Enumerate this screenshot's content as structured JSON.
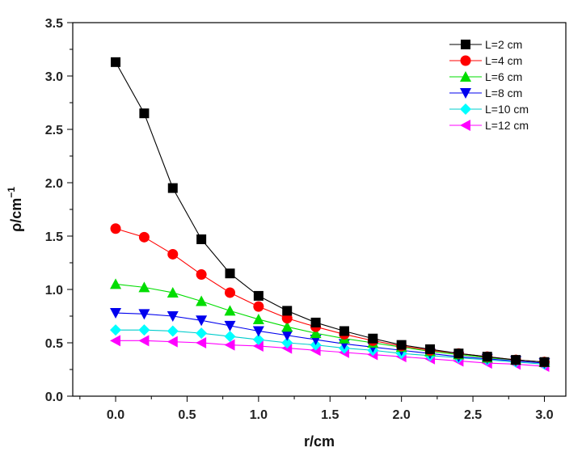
{
  "chart_data": {
    "type": "line",
    "title": "",
    "xlabel": "r/cm",
    "ylabel": "ρ/cm",
    "ylabel_exponent": "−1",
    "xlim": [
      -0.3,
      3.15
    ],
    "ylim": [
      0.0,
      3.5
    ],
    "x_ticks": [
      0.0,
      0.5,
      1.0,
      1.5,
      2.0,
      2.5,
      3.0
    ],
    "x_tick_labels": [
      "0.0",
      "0.5",
      "1.0",
      "1.5",
      "2.0",
      "2.5",
      "3.0"
    ],
    "y_ticks": [
      0.0,
      0.5,
      1.0,
      1.5,
      2.0,
      2.5,
      3.0,
      3.5
    ],
    "y_tick_labels": [
      "0.0",
      "0.5",
      "1.0",
      "1.5",
      "2.0",
      "2.5",
      "3.0",
      "3.5"
    ],
    "grid": false,
    "legend_position": "top-right",
    "x": [
      0.0,
      0.2,
      0.4,
      0.6,
      0.8,
      1.0,
      1.2,
      1.4,
      1.6,
      1.8,
      2.0,
      2.2,
      2.4,
      2.6,
      2.8,
      3.0
    ],
    "series": [
      {
        "name": "L=2 cm",
        "color": "#000000",
        "marker": "square",
        "values": [
          3.13,
          2.65,
          1.95,
          1.47,
          1.15,
          0.94,
          0.8,
          0.69,
          0.61,
          0.54,
          0.48,
          0.44,
          0.4,
          0.37,
          0.34,
          0.32
        ]
      },
      {
        "name": "L=4 cm",
        "color": "#ff0000",
        "marker": "circle",
        "values": [
          1.57,
          1.49,
          1.33,
          1.14,
          0.97,
          0.84,
          0.73,
          0.65,
          0.58,
          0.52,
          0.47,
          0.43,
          0.4,
          0.37,
          0.34,
          0.32
        ]
      },
      {
        "name": "L=6 cm",
        "color": "#00dd00",
        "marker": "triangle-up",
        "values": [
          1.05,
          1.02,
          0.97,
          0.89,
          0.8,
          0.72,
          0.65,
          0.59,
          0.54,
          0.5,
          0.46,
          0.42,
          0.39,
          0.36,
          0.34,
          0.32
        ]
      },
      {
        "name": "L=8 cm",
        "color": "#0000ee",
        "marker": "triangle-down",
        "values": [
          0.78,
          0.77,
          0.75,
          0.71,
          0.66,
          0.61,
          0.57,
          0.53,
          0.49,
          0.46,
          0.43,
          0.4,
          0.37,
          0.35,
          0.33,
          0.31
        ]
      },
      {
        "name": "L=10 cm",
        "color": "#00ffff",
        "marker": "diamond",
        "values": [
          0.62,
          0.62,
          0.61,
          0.59,
          0.56,
          0.53,
          0.5,
          0.48,
          0.45,
          0.43,
          0.4,
          0.38,
          0.36,
          0.34,
          0.32,
          0.3
        ]
      },
      {
        "name": "L=12 cm",
        "color": "#ff00ff",
        "marker": "triangle-left",
        "values": [
          0.52,
          0.52,
          0.51,
          0.5,
          0.48,
          0.47,
          0.45,
          0.43,
          0.41,
          0.39,
          0.37,
          0.35,
          0.33,
          0.31,
          0.3,
          0.28
        ]
      }
    ]
  }
}
